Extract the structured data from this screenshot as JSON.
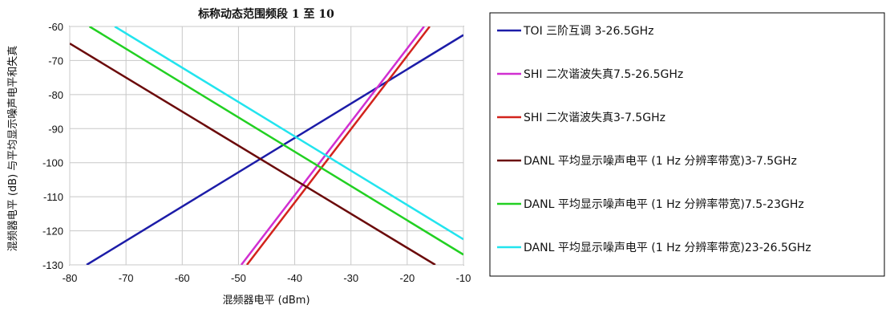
{
  "chart_data": {
    "type": "line",
    "title": "标称动态范围频段 1 至 10",
    "xlabel": "混频器电平 (dBm)",
    "ylabel": "混频器电平 (dB) 与平均显示噪声电平和失真",
    "xlim": [
      -80,
      -10
    ],
    "ylim": [
      -130,
      -60
    ],
    "xticks": [
      -80,
      -70,
      -60,
      -50,
      -40,
      -30,
      -20,
      -10
    ],
    "yticks": [
      -60,
      -70,
      -80,
      -90,
      -100,
      -110,
      -120,
      -130
    ],
    "grid": true,
    "legend_position": "right",
    "series": [
      {
        "name": "TOI 三阶互调 3-26.5GHz",
        "color": "#1c1ca8",
        "x": [
          -77,
          -10
        ],
        "y": [
          -130,
          -62.5
        ]
      },
      {
        "name": "SHI 二次谐波失真7.5-26.5GHz",
        "color": "#d12fd1",
        "x": [
          -49.5,
          -17
        ],
        "y": [
          -130,
          -60
        ]
      },
      {
        "name": "SHI 二次谐波失真3-7.5GHz",
        "color": "#d2231c",
        "x": [
          -48.5,
          -16
        ],
        "y": [
          -130,
          -60
        ]
      },
      {
        "name": "DANL 平均显示噪声电平 (1 Hz 分辨率带宽)3-7.5GHz",
        "color": "#6b0b0b",
        "x": [
          -80,
          -15
        ],
        "y": [
          -65,
          -130
        ]
      },
      {
        "name": "DANL 平均显示噪声电平 (1 Hz 分辨率带宽)7.5-23GHz",
        "color": "#22d022",
        "x": [
          -76.5,
          -10
        ],
        "y": [
          -60,
          -127
        ]
      },
      {
        "name": "DANL 平均显示噪声电平 (1 Hz 分辨率带宽)23-26.5GHz",
        "color": "#22e4ee",
        "x": [
          -72,
          -10
        ],
        "y": [
          -60,
          -122.5
        ]
      }
    ]
  }
}
